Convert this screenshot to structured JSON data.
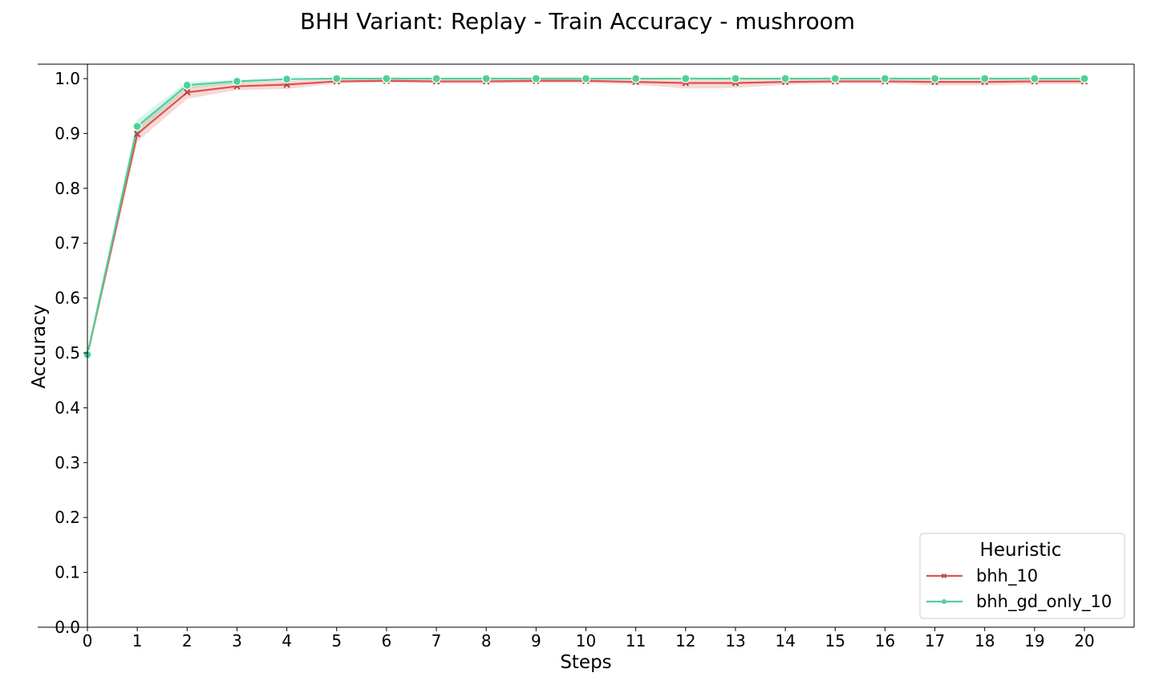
{
  "chart_data": {
    "type": "line",
    "title": "BHH Variant: Replay - Train Accuracy - mushroom",
    "xlabel": "Steps",
    "ylabel": "Accuracy",
    "xlim": [
      0,
      20
    ],
    "ylim": [
      0.0,
      1.0
    ],
    "x": [
      0,
      1,
      2,
      3,
      4,
      5,
      6,
      7,
      8,
      9,
      10,
      11,
      12,
      13,
      14,
      15,
      16,
      17,
      18,
      19,
      20
    ],
    "x_ticks": [
      "0",
      "1",
      "2",
      "3",
      "4",
      "5",
      "6",
      "7",
      "8",
      "9",
      "10",
      "11",
      "12",
      "13",
      "14",
      "15",
      "16",
      "17",
      "18",
      "19",
      "20"
    ],
    "y_ticks": [
      "0.0",
      "0.1",
      "0.2",
      "0.3",
      "0.4",
      "0.5",
      "0.6",
      "0.7",
      "0.8",
      "0.9",
      "1.0"
    ],
    "grid": false,
    "legend": {
      "title": "Heuristic",
      "placement": "bottom-right"
    },
    "series": [
      {
        "name": "bhh_10",
        "color": "#d9544d",
        "marker": "x",
        "values": [
          0.497,
          0.899,
          0.975,
          0.986,
          0.989,
          0.995,
          0.996,
          0.995,
          0.995,
          0.996,
          0.996,
          0.994,
          0.992,
          0.992,
          0.994,
          0.995,
          0.995,
          0.994,
          0.994,
          0.995,
          0.995
        ],
        "ci_low": [
          0.488,
          0.885,
          0.963,
          0.979,
          0.981,
          0.991,
          0.993,
          0.991,
          0.991,
          0.992,
          0.992,
          0.989,
          0.982,
          0.983,
          0.989,
          0.991,
          0.991,
          0.988,
          0.988,
          0.99,
          0.99
        ],
        "ci_high": [
          0.506,
          0.913,
          0.985,
          0.993,
          0.996,
          0.999,
          1.0,
          0.999,
          0.999,
          1.0,
          1.0,
          0.999,
          0.998,
          0.999,
          0.999,
          1.0,
          1.0,
          0.999,
          0.999,
          1.0,
          1.0
        ]
      },
      {
        "name": "bhh_gd_only_10",
        "color": "#4fd199",
        "marker": "o",
        "values": [
          0.497,
          0.913,
          0.988,
          0.995,
          0.999,
          1.0,
          1.0,
          1.0,
          1.0,
          1.0,
          1.0,
          1.0,
          1.0,
          1.0,
          1.0,
          1.0,
          1.0,
          1.0,
          1.0,
          1.0,
          1.0
        ],
        "ci_low": [
          0.49,
          0.9,
          0.981,
          0.991,
          0.997,
          0.999,
          1.0,
          1.0,
          1.0,
          1.0,
          1.0,
          1.0,
          1.0,
          1.0,
          1.0,
          1.0,
          1.0,
          1.0,
          1.0,
          1.0,
          1.0
        ],
        "ci_high": [
          0.504,
          0.926,
          0.994,
          0.998,
          1.0,
          1.0,
          1.0,
          1.0,
          1.0,
          1.0,
          1.0,
          1.0,
          1.0,
          1.0,
          1.0,
          1.0,
          1.0,
          1.0,
          1.0,
          1.0,
          1.0
        ]
      }
    ]
  }
}
